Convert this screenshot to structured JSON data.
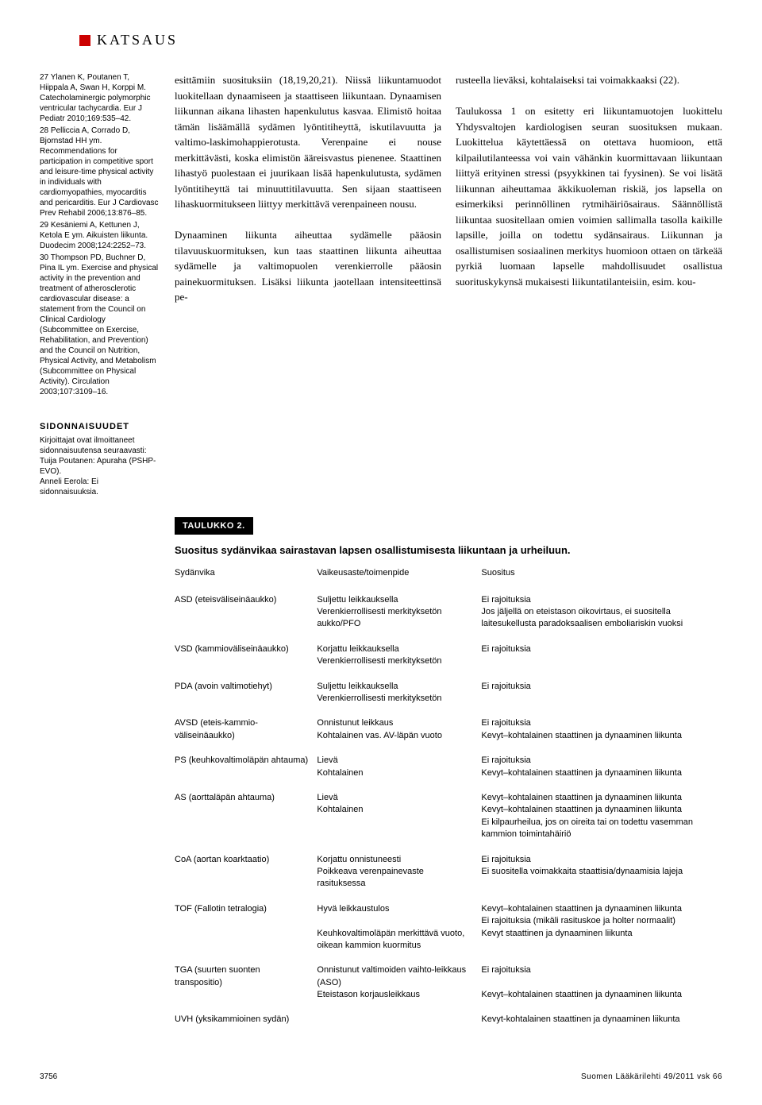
{
  "header": {
    "label": "KATSAUS",
    "marker_color": "#cc0000"
  },
  "references": [
    "27 Ylanen K, Poutanen T, Hiippala A, Swan H, Korppi M. Catecholaminergic polymorphic ventricular tachycardia. Eur J Pediatr 2010;169:535–42.",
    "28 Pelliccia A, Corrado D, Bjornstad HH ym. Recommendations for participation in competitive sport and leisure-time physical activity in individuals with cardiomyopathies, myocarditis and pericarditis. Eur J Cardiovasc Prev Rehabil 2006;13:876–85.",
    "29 Kesäniemi A, Kettunen J, Ketola E ym. Aikuisten liikunta. Duodecim 2008;124:2252–73.",
    "30 Thompson PD, Buchner D, Pina IL ym. Exercise and physical activity in the prevention and treatment of atherosclerotic cardiovascular disease: a statement from the Council on Clinical Cardiology (Subcommittee on Exercise, Rehabilitation, and Prevention) and the Council on Nutrition, Physical Activity, and Metabolism (Subcommittee on Physical Activity). Circulation 2003;107:3109–16."
  ],
  "sidonna": {
    "header": "SIDONNAISUUDET",
    "text": "Kirjoittajat ovat ilmoittaneet sidonnaisuutensa seuraavasti: Tuija Poutanen: Apuraha (PSHP-EVO).\nAnneli Eerola: Ei sidonnaisuuksia."
  },
  "body": {
    "col1": "esittämiin suosituksiin (18,19,20,21). Niissä liikuntamuodot luokitellaan dynaamiseen ja staattiseen liikuntaan. Dynaamisen liikunnan aikana lihasten hapenkulutus kasvaa. Elimistö hoitaa tämän lisäämällä sydämen lyöntitiheyttä, iskutilavuutta ja valtimo-laskimohappierotusta. Verenpaine ei nouse merkittävästi, koska elimistön ääreisvastus pienenee. Staattinen lihastyö puolestaan ei juurikaan lisää hapenkulutusta, sydämen lyöntitiheyttä tai minuuttitilavuutta. Sen sijaan staattiseen lihaskuormitukseen liittyy merkittävä verenpaineen nousu.\n\nDynaaminen liikunta aiheuttaa sydämelle pääosin tilavuuskuormituksen, kun taas staattinen liikunta aiheuttaa sydämelle ja valtimopuolen verenkierrolle pääosin painekuormituksen. Lisäksi liikunta jaotellaan intensiteettinsä pe-",
    "col2": "rusteella lieväksi, kohtalaiseksi tai voimakkaaksi (22).\n\nTaulukossa 1 on esitetty eri liikuntamuotojen luokittelu Yhdysvaltojen kardiologisen seuran suosituksen mukaan. Luokittelua käytettäessä on otettava huomioon, että kilpailutilanteessa voi vain vähänkin kuormittavaan liikuntaan liittyä erityinen stressi (psyykkinen tai fyysinen). Se voi lisätä liikunnan aiheuttamaa äkkikuoleman riskiä, jos lapsella on esimerkiksi perinnöllinen rytmihäiriösairaus. Säännöllistä liikuntaa suositellaan omien voimien sallimalla tasolla kaikille lapsille, joilla on todettu sydänsairaus. Liikunnan ja osallistumisen sosiaalinen merkitys huomioon ottaen on tärkeää pyrkiä luomaan lapselle mahdollisuudet osallistua suorituskykynsä mukaisesti liikuntatilanteisiin, esim. kou-"
  },
  "table": {
    "label": "TAULUKKO 2.",
    "title": "Suositus sydänvikaa sairastavan lapsen osallistumisesta liikuntaan ja urheiluun.",
    "headers": [
      "Sydänvika",
      "Vaikeusaste/toimenpide",
      "Suositus"
    ],
    "rows": [
      [
        "ASD (eteisväliseinäaukko)",
        "Suljettu leikkauksella\nVerenkierrollisesti merkityksetön aukko/PFO",
        "Ei rajoituksia\nJos jäljellä on eteistason oikovirtaus, ei suositella laitesukellusta paradoksaalisen emboliariskin vuoksi"
      ],
      [
        "VSD (kammioväliseinäaukko)",
        "Korjattu leikkauksella\nVerenkierrollisesti merkityksetön",
        "Ei rajoituksia"
      ],
      [
        "PDA (avoin valtimotiehyt)",
        "Suljettu leikkauksella\nVerenkierrollisesti merkityksetön",
        "Ei rajoituksia"
      ],
      [
        "AVSD (eteis-kammio-väliseinäaukko)",
        "Onnistunut leikkaus\nKohtalainen vas. AV-läpän vuoto",
        "Ei rajoituksia\nKevyt–kohtalainen staattinen ja dynaaminen liikunta"
      ],
      [
        "PS (keuhkovaltimoläpän ahtauma)",
        "Lievä\nKohtalainen",
        "Ei rajoituksia\nKevyt–kohtalainen staattinen ja dynaaminen liikunta"
      ],
      [
        "AS (aorttaläpän ahtauma)",
        "Lievä\nKohtalainen",
        "Kevyt–kohtalainen staattinen ja dynaaminen liikunta\nKevyt–kohtalainen staattinen ja dynaaminen liikunta\nEi kilpaurheilua, jos on oireita tai on todettu vasemman kammion toimintahäiriö"
      ],
      [
        "CoA (aortan koarktaatio)",
        "Korjattu onnistuneesti\nPoikkeava verenpainevaste rasituksessa",
        "Ei rajoituksia\nEi suositella voimakkaita staattisia/dynaamisia lajeja"
      ],
      [
        "TOF (Fallotin tetralogia)",
        "Hyvä leikkaustulos\n\nKeuhkovaltimoläpän merkittävä vuoto, oikean kammion kuormitus",
        "Kevyt–kohtalainen staattinen ja dynaaminen liikunta\nEi rajoituksia (mikäli rasituskoe ja holter normaalit)\nKevyt staattinen ja dynaaminen liikunta"
      ],
      [
        "TGA (suurten suonten transpositio)",
        "Onnistunut valtimoiden vaihto-leikkaus (ASO)\nEteistason korjausleikkaus",
        "Ei rajoituksia\n\nKevyt–kohtalainen staattinen ja dynaaminen liikunta"
      ],
      [
        "UVH (yksikammioinen sydän)",
        "",
        "Kevyt-kohtalainen staattinen ja dynaaminen liikunta"
      ]
    ]
  },
  "footer": {
    "page": "3756",
    "journal": "Suomen Lääkärilehti 49/2011 vsk 66"
  }
}
